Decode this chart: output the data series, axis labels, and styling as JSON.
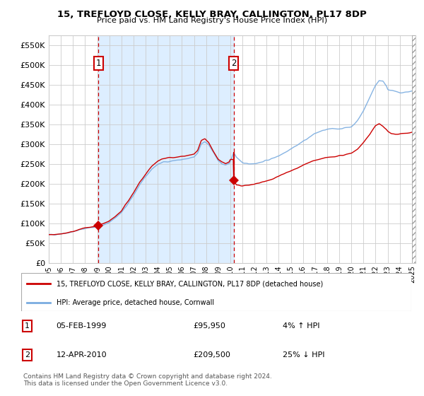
{
  "title": "15, TREFLOYD CLOSE, KELLY BRAY, CALLINGTON, PL17 8DP",
  "subtitle": "Price paid vs. HM Land Registry's House Price Index (HPI)",
  "legend_label_red": "15, TREFLOYD CLOSE, KELLY BRAY, CALLINGTON, PL17 8DP (detached house)",
  "legend_label_blue": "HPI: Average price, detached house, Cornwall",
  "transaction1_date": "05-FEB-1999",
  "transaction1_price": 95950,
  "transaction1_hpi": "4% ↑ HPI",
  "transaction2_date": "12-APR-2010",
  "transaction2_price": 209500,
  "transaction2_hpi": "25% ↓ HPI",
  "footer": "Contains HM Land Registry data © Crown copyright and database right 2024.\nThis data is licensed under the Open Government Licence v3.0.",
  "xmin": 1995.0,
  "xmax": 2025.3,
  "ymin": 0,
  "ymax": 575000,
  "yticks": [
    0,
    50000,
    100000,
    150000,
    200000,
    250000,
    300000,
    350000,
    400000,
    450000,
    500000,
    550000
  ],
  "red_color": "#cc0000",
  "blue_color": "#7aace0",
  "bg_shaded_color": "#ddeeff",
  "grid_color": "#cccccc",
  "transaction1_x": 1999.1,
  "transaction2_x": 2010.28,
  "hpi_anchors": [
    [
      1995.0,
      72000
    ],
    [
      1995.5,
      73000
    ],
    [
      1996.0,
      75000
    ],
    [
      1996.5,
      77000
    ],
    [
      1997.0,
      80000
    ],
    [
      1997.5,
      84000
    ],
    [
      1998.0,
      88000
    ],
    [
      1998.5,
      91000
    ],
    [
      1999.0,
      92000
    ],
    [
      1999.5,
      96000
    ],
    [
      2000.0,
      104000
    ],
    [
      2000.5,
      115000
    ],
    [
      2001.0,
      128000
    ],
    [
      2001.5,
      148000
    ],
    [
      2002.0,
      172000
    ],
    [
      2002.5,
      198000
    ],
    [
      2003.0,
      218000
    ],
    [
      2003.5,
      238000
    ],
    [
      2004.0,
      250000
    ],
    [
      2004.5,
      256000
    ],
    [
      2005.0,
      258000
    ],
    [
      2005.5,
      260000
    ],
    [
      2006.0,
      262000
    ],
    [
      2006.5,
      264000
    ],
    [
      2007.0,
      268000
    ],
    [
      2007.3,
      278000
    ],
    [
      2007.6,
      302000
    ],
    [
      2007.9,
      308000
    ],
    [
      2008.2,
      300000
    ],
    [
      2008.5,
      285000
    ],
    [
      2008.8,
      270000
    ],
    [
      2009.0,
      258000
    ],
    [
      2009.3,
      252000
    ],
    [
      2009.6,
      248000
    ],
    [
      2009.9,
      252000
    ],
    [
      2010.0,
      258000
    ],
    [
      2010.28,
      280000
    ],
    [
      2010.5,
      268000
    ],
    [
      2010.8,
      258000
    ],
    [
      2011.0,
      254000
    ],
    [
      2011.5,
      252000
    ],
    [
      2012.0,
      252000
    ],
    [
      2012.5,
      255000
    ],
    [
      2013.0,
      260000
    ],
    [
      2013.5,
      265000
    ],
    [
      2014.0,
      272000
    ],
    [
      2014.5,
      280000
    ],
    [
      2015.0,
      290000
    ],
    [
      2015.5,
      298000
    ],
    [
      2016.0,
      308000
    ],
    [
      2016.5,
      318000
    ],
    [
      2017.0,
      328000
    ],
    [
      2017.5,
      334000
    ],
    [
      2018.0,
      338000
    ],
    [
      2018.5,
      340000
    ],
    [
      2019.0,
      340000
    ],
    [
      2019.5,
      342000
    ],
    [
      2020.0,
      345000
    ],
    [
      2020.5,
      360000
    ],
    [
      2021.0,
      385000
    ],
    [
      2021.5,
      418000
    ],
    [
      2022.0,
      450000
    ],
    [
      2022.3,
      462000
    ],
    [
      2022.6,
      460000
    ],
    [
      2022.9,
      448000
    ],
    [
      2023.0,
      440000
    ],
    [
      2023.5,
      435000
    ],
    [
      2024.0,
      430000
    ],
    [
      2024.5,
      432000
    ],
    [
      2025.0,
      435000
    ]
  ],
  "red_anchors": [
    [
      1995.0,
      72000
    ],
    [
      1995.5,
      73000
    ],
    [
      1996.0,
      75000
    ],
    [
      1996.5,
      77500
    ],
    [
      1997.0,
      80500
    ],
    [
      1997.5,
      85000
    ],
    [
      1998.0,
      89000
    ],
    [
      1998.5,
      92000
    ],
    [
      1999.0,
      93000
    ],
    [
      1999.09,
      93500
    ],
    [
      1999.1,
      95950
    ],
    [
      1999.5,
      100000
    ],
    [
      2000.0,
      107000
    ],
    [
      2000.5,
      118000
    ],
    [
      2001.0,
      132000
    ],
    [
      2001.5,
      155000
    ],
    [
      2002.0,
      178000
    ],
    [
      2002.5,
      205000
    ],
    [
      2003.0,
      225000
    ],
    [
      2003.5,
      245000
    ],
    [
      2004.0,
      258000
    ],
    [
      2004.5,
      265000
    ],
    [
      2005.0,
      268000
    ],
    [
      2005.5,
      268000
    ],
    [
      2006.0,
      270000
    ],
    [
      2006.5,
      272000
    ],
    [
      2007.0,
      275000
    ],
    [
      2007.3,
      285000
    ],
    [
      2007.6,
      310000
    ],
    [
      2007.9,
      315000
    ],
    [
      2008.2,
      305000
    ],
    [
      2008.5,
      288000
    ],
    [
      2008.8,
      272000
    ],
    [
      2009.0,
      262000
    ],
    [
      2009.3,
      256000
    ],
    [
      2009.6,
      252000
    ],
    [
      2009.9,
      256000
    ],
    [
      2010.0,
      262000
    ],
    [
      2010.27,
      262000
    ],
    [
      2010.28,
      209500
    ],
    [
      2010.5,
      198000
    ],
    [
      2010.8,
      196000
    ],
    [
      2011.0,
      196000
    ],
    [
      2011.5,
      197000
    ],
    [
      2012.0,
      200000
    ],
    [
      2012.5,
      204000
    ],
    [
      2013.0,
      208000
    ],
    [
      2013.5,
      213000
    ],
    [
      2014.0,
      220000
    ],
    [
      2014.5,
      228000
    ],
    [
      2015.0,
      234000
    ],
    [
      2015.5,
      240000
    ],
    [
      2016.0,
      248000
    ],
    [
      2016.5,
      254000
    ],
    [
      2017.0,
      260000
    ],
    [
      2017.5,
      264000
    ],
    [
      2018.0,
      268000
    ],
    [
      2018.5,
      270000
    ],
    [
      2019.0,
      272000
    ],
    [
      2019.5,
      274000
    ],
    [
      2020.0,
      278000
    ],
    [
      2020.5,
      288000
    ],
    [
      2021.0,
      305000
    ],
    [
      2021.5,
      325000
    ],
    [
      2022.0,
      348000
    ],
    [
      2022.3,
      352000
    ],
    [
      2022.6,
      346000
    ],
    [
      2022.9,
      338000
    ],
    [
      2023.0,
      334000
    ],
    [
      2023.3,
      328000
    ],
    [
      2023.6,
      326000
    ],
    [
      2024.0,
      326000
    ],
    [
      2024.5,
      328000
    ],
    [
      2025.0,
      330000
    ]
  ]
}
